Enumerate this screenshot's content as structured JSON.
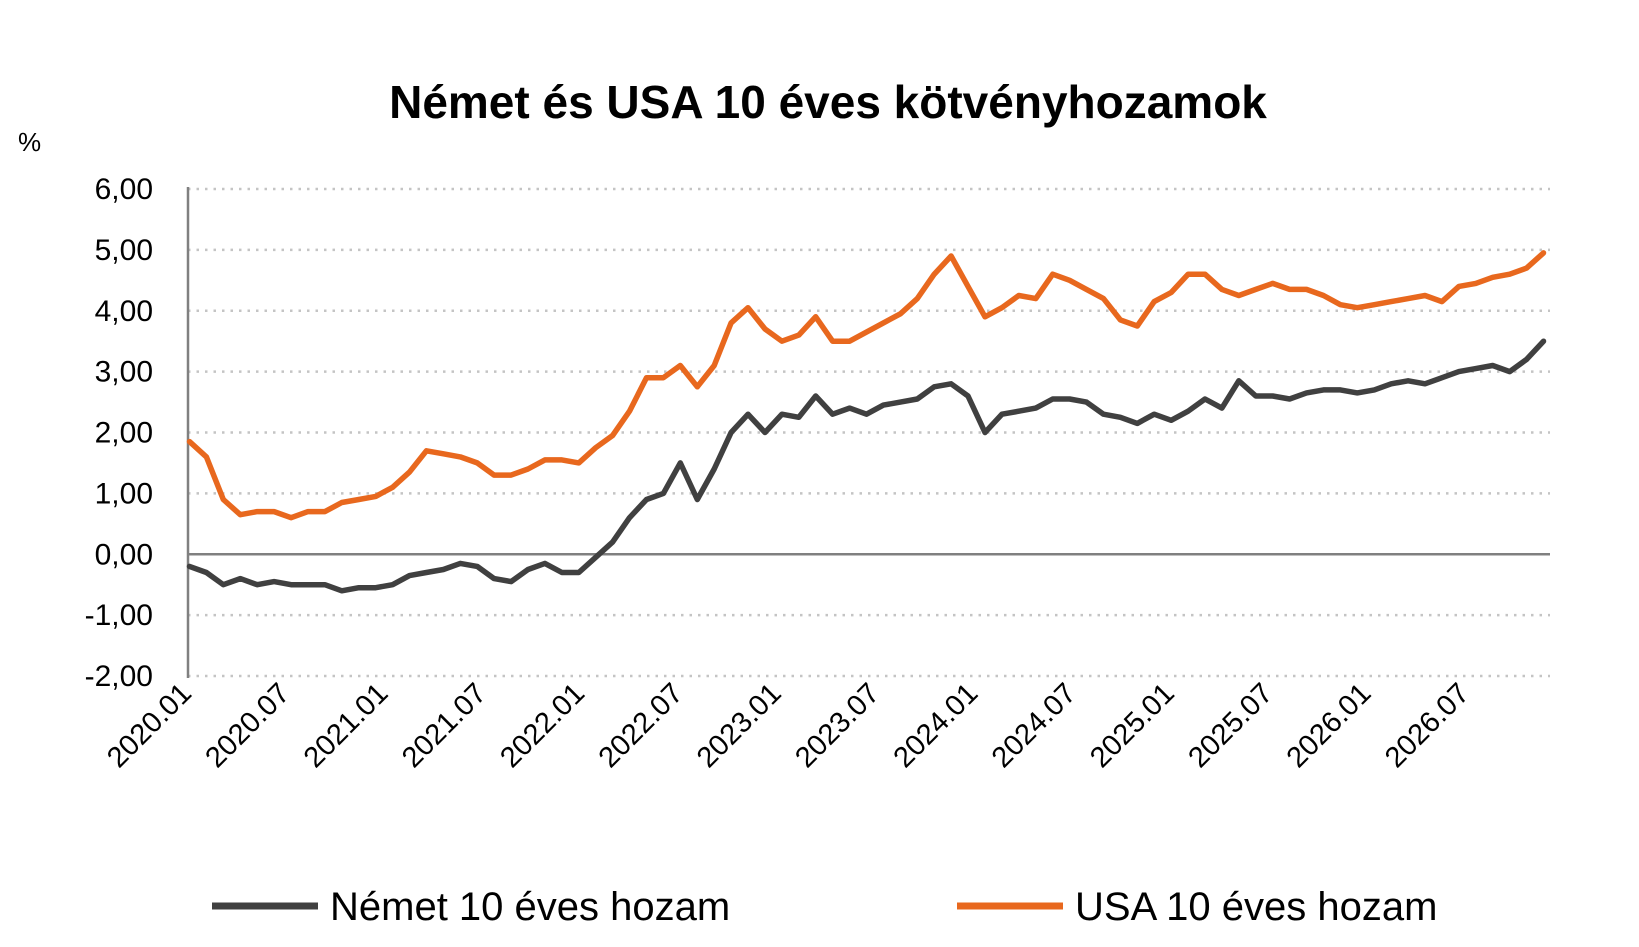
{
  "chart_data": {
    "type": "line",
    "title": "Német és USA 10 éves kötvényhozamok",
    "ylabel": "%",
    "xlabel": "",
    "ylim": [
      -2,
      6
    ],
    "yticks": [
      "-2,00",
      "-1,00",
      "0,00",
      "1,00",
      "2,00",
      "3,00",
      "4,00",
      "5,00",
      "6,00"
    ],
    "xticks": [
      "2020.01",
      "2020.07",
      "2021.01",
      "2021.07",
      "2022.01",
      "2022.07",
      "2023.01",
      "2023.07",
      "2024.01",
      "2024.07",
      "2025.01",
      "2025.07",
      "2026.01",
      "2026.07"
    ],
    "grid": "horizontal dotted",
    "legend": "bottom",
    "x": [
      "2020.01",
      "2020.02",
      "2020.03",
      "2020.04",
      "2020.05",
      "2020.06",
      "2020.07",
      "2020.08",
      "2020.09",
      "2020.10",
      "2020.11",
      "2020.12",
      "2021.01",
      "2021.02",
      "2021.03",
      "2021.04",
      "2021.05",
      "2021.06",
      "2021.07",
      "2021.08",
      "2021.09",
      "2021.10",
      "2021.11",
      "2021.12",
      "2022.01",
      "2022.02",
      "2022.03",
      "2022.04",
      "2022.05",
      "2022.06",
      "2022.07",
      "2022.08",
      "2022.09",
      "2022.10",
      "2022.11",
      "2022.12",
      "2023.01",
      "2023.02",
      "2023.03",
      "2023.04",
      "2023.05",
      "2023.06",
      "2023.07",
      "2023.08",
      "2023.09",
      "2023.10",
      "2023.11",
      "2023.12",
      "2024.01",
      "2024.02",
      "2024.03",
      "2024.04",
      "2024.05",
      "2024.06",
      "2024.07",
      "2024.08",
      "2024.09",
      "2024.10",
      "2024.11",
      "2024.12",
      "2025.01",
      "2025.02",
      "2025.03",
      "2025.04",
      "2025.05",
      "2025.06",
      "2025.07",
      "2025.08",
      "2025.09",
      "2025.10",
      "2025.11",
      "2025.12",
      "2026.01",
      "2026.02",
      "2026.03",
      "2026.04",
      "2026.05",
      "2026.06",
      "2026.07",
      "2026.08",
      "2026.09"
    ],
    "series": [
      {
        "name": "Német 10 éves hozam",
        "color": "#404040",
        "values": [
          -0.2,
          -0.3,
          -0.5,
          -0.4,
          -0.5,
          -0.45,
          -0.5,
          -0.5,
          -0.5,
          -0.6,
          -0.55,
          -0.55,
          -0.5,
          -0.35,
          -0.3,
          -0.25,
          -0.15,
          -0.2,
          -0.4,
          -0.45,
          -0.25,
          -0.15,
          -0.3,
          -0.3,
          -0.05,
          0.2,
          0.6,
          0.9,
          1.0,
          1.5,
          0.9,
          1.4,
          2.0,
          2.3,
          2.0,
          2.3,
          2.25,
          2.6,
          2.3,
          2.4,
          2.3,
          2.45,
          2.5,
          2.55,
          2.75,
          2.8,
          2.6,
          2.0,
          2.3,
          2.35,
          2.4,
          2.55,
          2.55,
          2.5,
          2.3,
          2.25,
          2.15,
          2.3,
          2.2,
          2.35,
          2.55,
          2.4,
          2.85,
          2.6,
          2.6,
          2.55,
          2.65,
          2.7,
          2.7,
          2.65,
          2.7,
          2.8,
          2.85,
          2.8,
          2.9,
          3.0,
          3.05,
          3.1,
          3.0,
          3.2,
          3.5
        ]
      },
      {
        "name": "USA 10 éves hozam",
        "color": "#e8681e",
        "values": [
          1.85,
          1.6,
          0.9,
          0.65,
          0.7,
          0.7,
          0.6,
          0.7,
          0.7,
          0.85,
          0.9,
          0.95,
          1.1,
          1.35,
          1.7,
          1.65,
          1.6,
          1.5,
          1.3,
          1.3,
          1.4,
          1.55,
          1.55,
          1.5,
          1.75,
          1.95,
          2.35,
          2.9,
          2.9,
          3.1,
          2.75,
          3.1,
          3.8,
          4.05,
          3.7,
          3.5,
          3.6,
          3.9,
          3.5,
          3.5,
          3.65,
          3.8,
          3.95,
          4.2,
          4.6,
          4.9,
          4.4,
          3.9,
          4.05,
          4.25,
          4.2,
          4.6,
          4.5,
          4.35,
          4.2,
          3.85,
          3.75,
          4.15,
          4.3,
          4.6,
          4.6,
          4.35,
          4.25,
          4.35,
          4.45,
          4.35,
          4.35,
          4.25,
          4.1,
          4.05,
          4.1,
          4.15,
          4.2,
          4.25,
          4.15,
          4.4,
          4.45,
          4.55,
          4.6,
          4.7,
          4.95
        ]
      }
    ]
  }
}
